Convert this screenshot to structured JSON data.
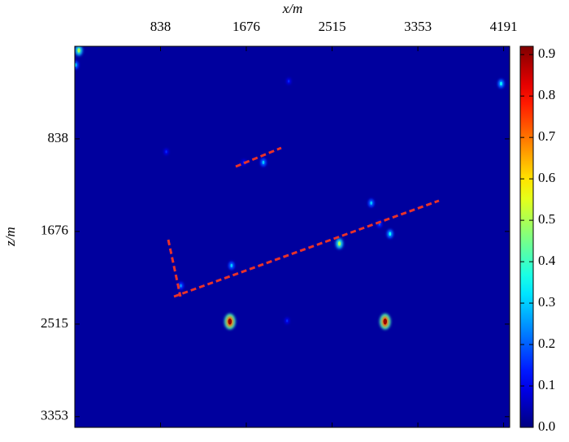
{
  "chart_data": {
    "type": "heatmap",
    "x_label": "x/m",
    "y_label": "z/m",
    "xlim": [
      0,
      4250
    ],
    "xticks": [
      838,
      1676,
      2515,
      3353,
      4191
    ],
    "ylim": [
      0,
      3450
    ],
    "yticks": [
      838,
      1676,
      2515,
      3353
    ],
    "clim": [
      0,
      0.92
    ],
    "cticks": [
      {
        "value": 0,
        "label": "0.0"
      },
      0.1,
      0.2,
      0.3,
      0.4,
      0.5,
      0.6,
      0.7,
      0.8,
      0.9
    ],
    "points": {
      "x": [
        1516,
        3033,
        2586,
        3081,
        2897,
        1843,
        1532,
        1037,
        40,
        4166,
        8,
        1652,
        2091,
        894,
        2075,
        2978
      ],
      "z": [
        2492,
        2492,
        1786,
        1698,
        1419,
        1051,
        1985,
        2168,
        37,
        338,
        169,
        1051,
        316,
        955,
        2485,
        1610
      ],
      "values": [
        0.9,
        0.9,
        0.5,
        0.35,
        0.3,
        0.3,
        0.3,
        0.25,
        0.5,
        0.35,
        0.3,
        0.15,
        0.15,
        0.15,
        0.15,
        0.2
      ]
    }
  }
}
